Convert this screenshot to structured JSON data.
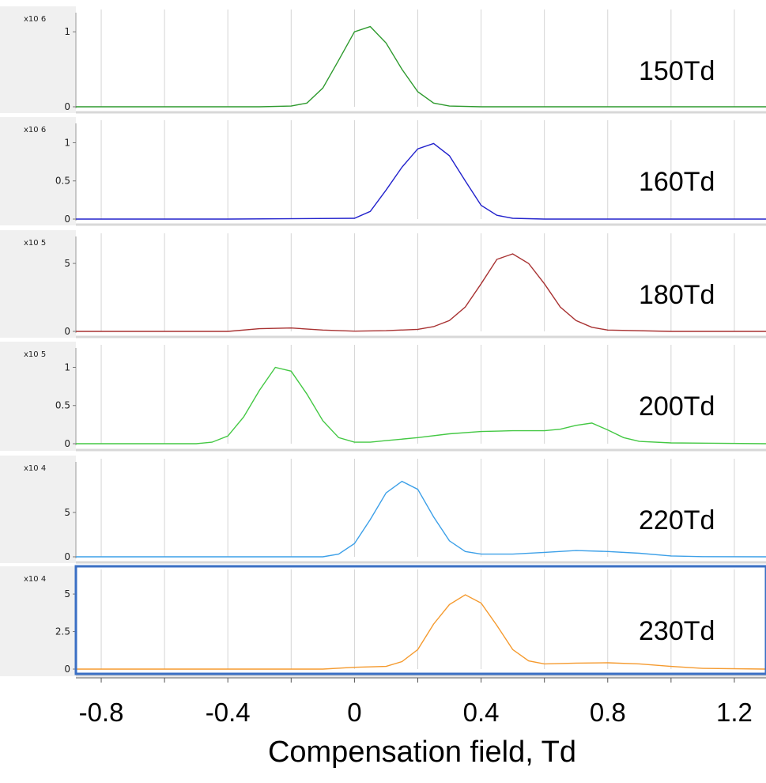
{
  "chart_data": {
    "type": "line",
    "xlabel": "Compensation field, Td",
    "xlim": [
      -0.88,
      1.3
    ],
    "xticks": [
      -0.8,
      -0.4,
      0,
      0.4,
      0.8,
      1.2
    ],
    "xtick_labels": [
      "-0.8",
      "-0.4",
      "0",
      "0.4",
      "0.8",
      "1.2"
    ],
    "grid": true,
    "panels": [
      {
        "name": "150Td",
        "exponent_label": "x10 6",
        "color": "#2e9a2e",
        "yticks": [
          0,
          1
        ],
        "ytick_labels": [
          "0",
          "1"
        ],
        "ylim": [
          0,
          1.15
        ],
        "x": [
          -0.88,
          -0.5,
          -0.4,
          -0.3,
          -0.2,
          -0.15,
          -0.1,
          -0.05,
          0,
          0.05,
          0.1,
          0.15,
          0.2,
          0.25,
          0.3,
          0.4,
          0.6,
          1.0,
          1.3
        ],
        "y": [
          0,
          0,
          0,
          0,
          0.01,
          0.05,
          0.25,
          0.62,
          1.0,
          1.07,
          0.85,
          0.5,
          0.2,
          0.05,
          0.01,
          0,
          0,
          0,
          0
        ]
      },
      {
        "name": "160Td",
        "exponent_label": "x10 6",
        "color": "#2222cc",
        "yticks": [
          0,
          0.5,
          1
        ],
        "ytick_labels": [
          "0",
          "0.5",
          "1"
        ],
        "ylim": [
          0,
          1.15
        ],
        "x": [
          -0.88,
          -0.4,
          0,
          0.05,
          0.1,
          0.15,
          0.2,
          0.25,
          0.3,
          0.35,
          0.4,
          0.45,
          0.5,
          0.6,
          1.0,
          1.3
        ],
        "y": [
          0,
          0,
          0.01,
          0.1,
          0.38,
          0.68,
          0.92,
          0.99,
          0.83,
          0.5,
          0.18,
          0.05,
          0.01,
          0,
          0,
          0
        ],
        "peak_note": "max ~1.0 at x=0.25"
      },
      {
        "name": "180Td",
        "exponent_label": "x10 5",
        "color": "#a83232",
        "yticks": [
          0,
          5
        ],
        "ytick_labels": [
          "0",
          "5"
        ],
        "ylim": [
          0,
          6.4
        ],
        "x": [
          -0.88,
          -0.4,
          -0.3,
          -0.2,
          -0.1,
          0,
          0.1,
          0.2,
          0.25,
          0.3,
          0.35,
          0.4,
          0.45,
          0.5,
          0.55,
          0.6,
          0.65,
          0.7,
          0.75,
          0.8,
          1.0,
          1.3
        ],
        "y": [
          0,
          0,
          0.2,
          0.25,
          0.1,
          0.02,
          0.05,
          0.15,
          0.35,
          0.8,
          1.8,
          3.5,
          5.3,
          5.7,
          5.0,
          3.5,
          1.8,
          0.8,
          0.3,
          0.1,
          0,
          0
        ]
      },
      {
        "name": "200Td",
        "exponent_label": "x10 5",
        "color": "#44c844",
        "yticks": [
          0,
          0.5,
          1
        ],
        "ytick_labels": [
          "0",
          "0.5",
          "1"
        ],
        "ylim": [
          0,
          1.15
        ],
        "x": [
          -0.88,
          -0.5,
          -0.45,
          -0.4,
          -0.35,
          -0.3,
          -0.25,
          -0.2,
          -0.15,
          -0.1,
          -0.05,
          0,
          0.05,
          0.1,
          0.2,
          0.3,
          0.4,
          0.5,
          0.6,
          0.65,
          0.7,
          0.75,
          0.8,
          0.85,
          0.9,
          1.0,
          1.3
        ],
        "y": [
          0,
          0,
          0.02,
          0.1,
          0.35,
          0.7,
          1.0,
          0.95,
          0.65,
          0.3,
          0.08,
          0.02,
          0.02,
          0.04,
          0.08,
          0.13,
          0.16,
          0.17,
          0.17,
          0.19,
          0.24,
          0.27,
          0.18,
          0.08,
          0.03,
          0.01,
          0
        ]
      },
      {
        "name": "220Td",
        "exponent_label": "x10 4",
        "color": "#3da0e8",
        "yticks": [
          0,
          5
        ],
        "ytick_labels": [
          "0",
          "5"
        ],
        "ylim": [
          0,
          9.8
        ],
        "x": [
          -0.88,
          -0.1,
          -0.05,
          0,
          0.05,
          0.1,
          0.15,
          0.2,
          0.25,
          0.3,
          0.35,
          0.4,
          0.5,
          0.6,
          0.7,
          0.8,
          0.9,
          1.0,
          1.1,
          1.3
        ],
        "y": [
          0,
          0,
          0.3,
          1.5,
          4.2,
          7.2,
          8.5,
          7.6,
          4.5,
          1.8,
          0.6,
          0.3,
          0.3,
          0.5,
          0.7,
          0.6,
          0.4,
          0.1,
          0.02,
          0
        ]
      },
      {
        "name": "230Td",
        "exponent_label": "x10 4",
        "color": "#f59a2e",
        "yticks": [
          0,
          2.5,
          5
        ],
        "ytick_labels": [
          "0",
          "2.5",
          "5"
        ],
        "ylim": [
          0,
          5.9
        ],
        "x": [
          -0.88,
          -0.1,
          0,
          0.1,
          0.15,
          0.2,
          0.25,
          0.3,
          0.35,
          0.4,
          0.45,
          0.5,
          0.55,
          0.6,
          0.7,
          0.8,
          0.9,
          1.0,
          1.1,
          1.3
        ],
        "y": [
          0,
          0,
          0.12,
          0.18,
          0.5,
          1.3,
          3.0,
          4.3,
          4.95,
          4.4,
          2.9,
          1.3,
          0.55,
          0.35,
          0.4,
          0.42,
          0.35,
          0.18,
          0.05,
          0
        ]
      }
    ]
  }
}
